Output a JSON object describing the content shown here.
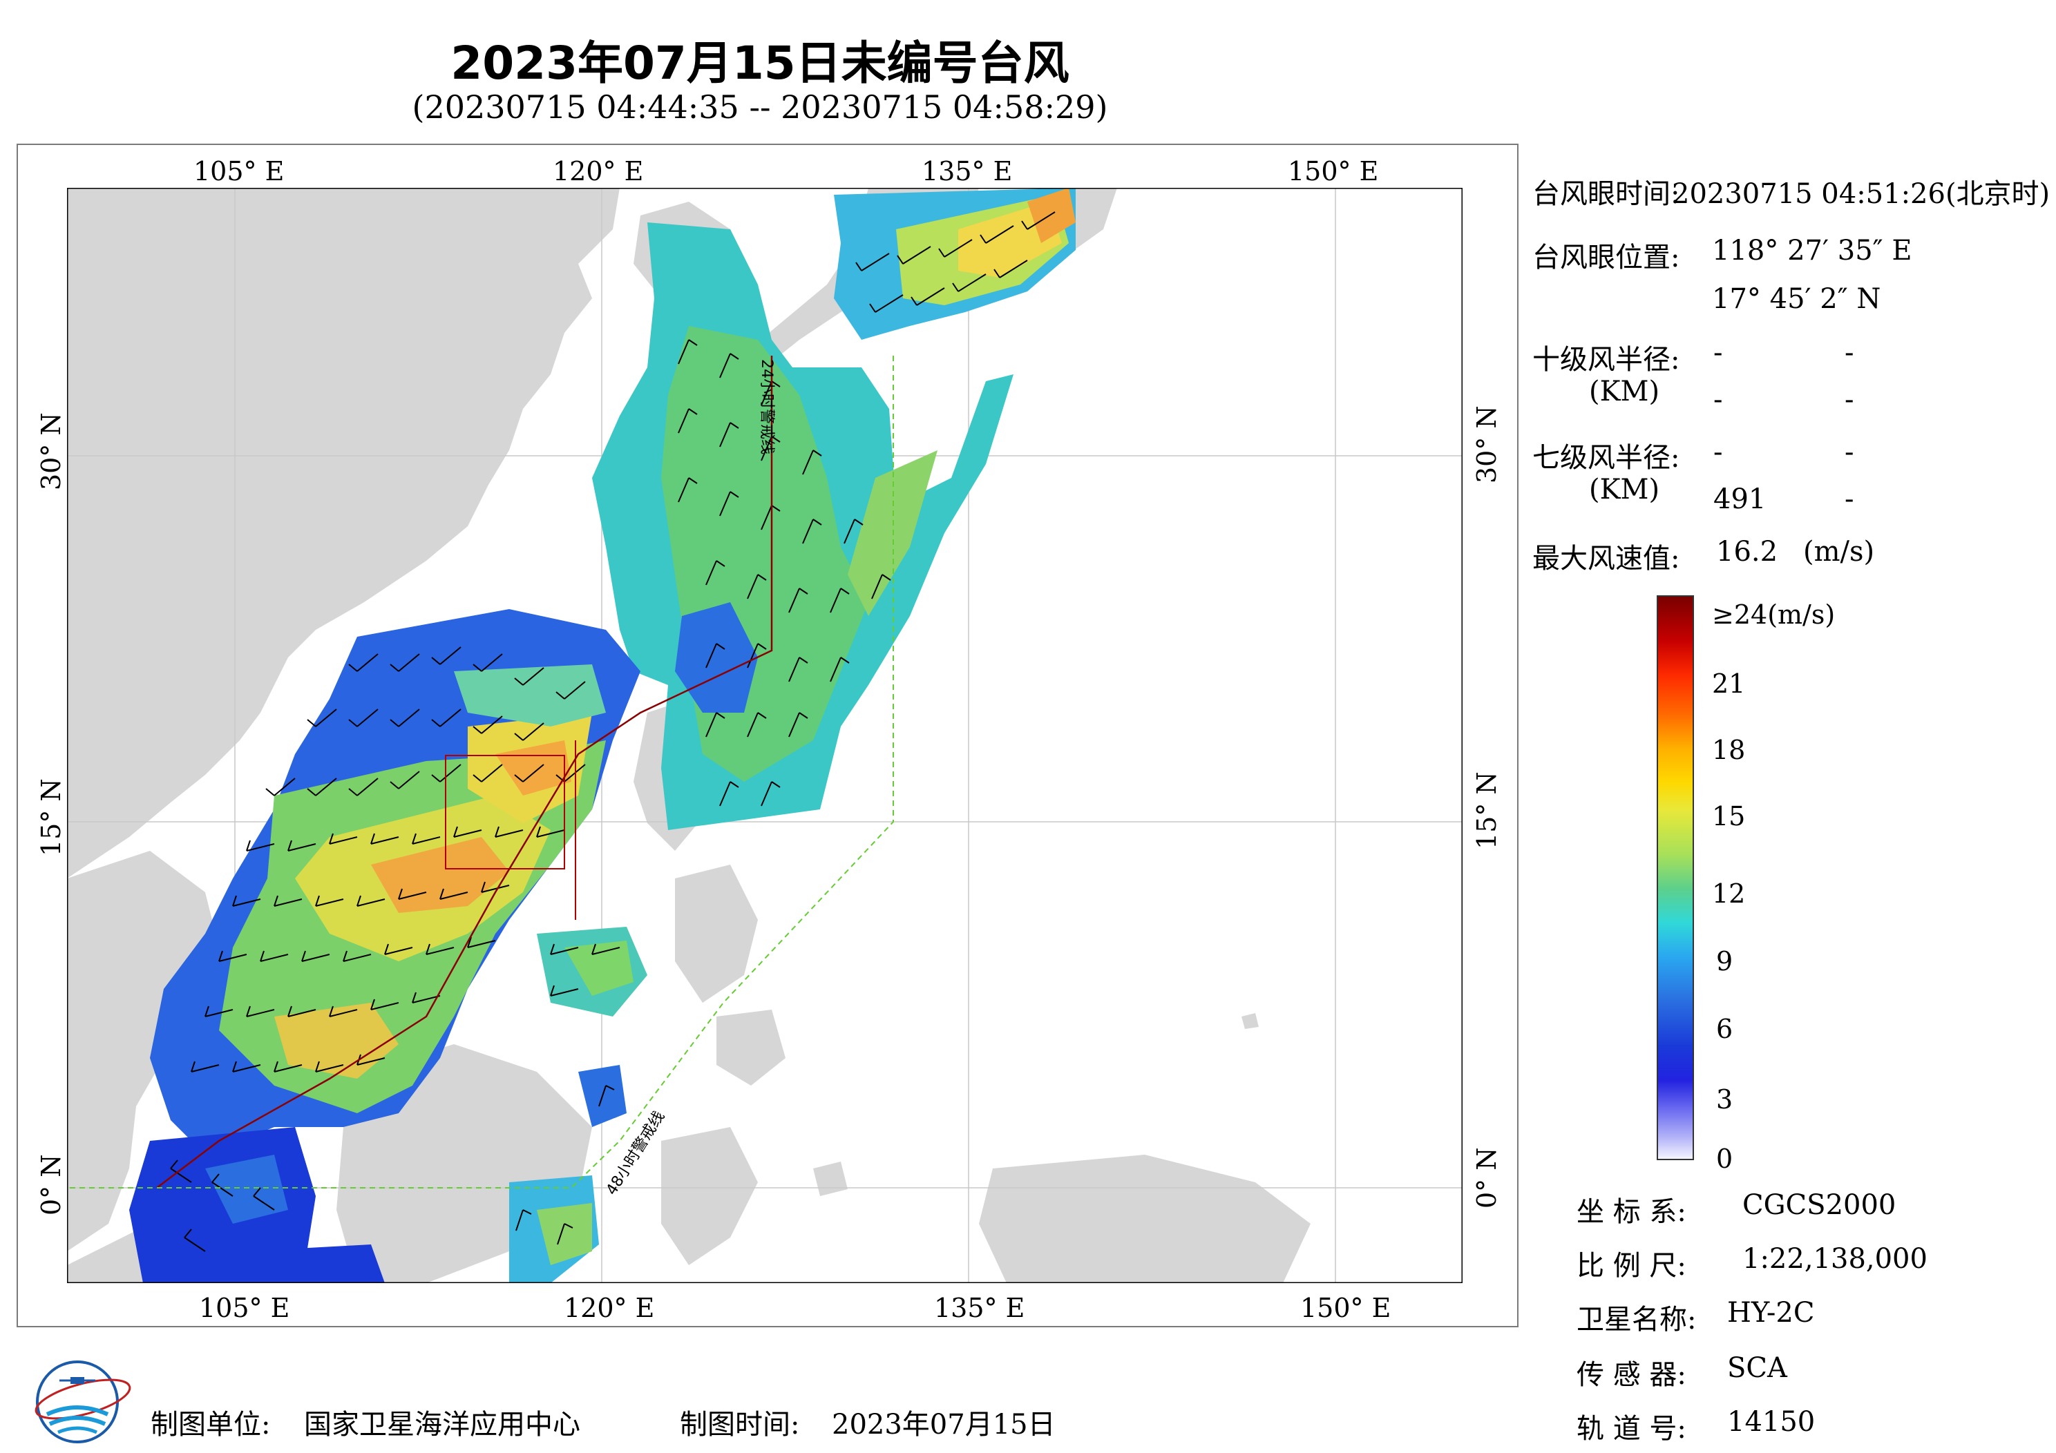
{
  "header": {
    "title": "2023年07月15日未编号台风",
    "subtitle": "(20230715 04:44:35 -- 20230715 04:58:29)"
  },
  "map": {
    "lon_ticks": [
      "105° E",
      "120° E",
      "135° E",
      "150° E"
    ],
    "lat_ticks": [
      "30° N",
      "15° N",
      "0° N"
    ],
    "warning_24h_label": "24小时警戒线",
    "warning_48h_label": "48小时警戒线",
    "colors": {
      "land": "#d6d6d6",
      "sea": "#ffffff",
      "warning24": "#8b0000",
      "warning48": "#66cc33"
    }
  },
  "info": {
    "eye_time_label": "台风眼时间:",
    "eye_time_value": "20230715 04:51:26(北京时)",
    "eye_pos_label": "台风眼位置:",
    "eye_lon": "118° 27′ 35″ E",
    "eye_lat": "17° 45′ 2″ N",
    "r10_label": "十级风半径:",
    "r10_unit": "(KM)",
    "r10_values": [
      "-",
      "-",
      "-",
      "-"
    ],
    "r7_label": "七级风半径:",
    "r7_unit": "(KM)",
    "r7_values": [
      "-",
      "-",
      "491",
      "-"
    ],
    "max_wind_label": "最大风速值:",
    "max_wind_value": "16.2",
    "max_wind_unit": "(m/s)"
  },
  "colorbar": {
    "top_label": "≥24(m/s)",
    "ticks": [
      "21",
      "18",
      "15",
      "12",
      "9",
      "6",
      "3",
      "0"
    ]
  },
  "meta": {
    "crs_label": "坐 标 系:",
    "crs_value": "CGCS2000",
    "scale_label": "比 例 尺:",
    "scale_value": "1:22,138,000",
    "satellite_label": "卫星名称:",
    "satellite_value": "HY-2C",
    "sensor_label": "传 感 器:",
    "sensor_value": "SCA",
    "orbit_label": "轨 道 号:",
    "orbit_value": "14150"
  },
  "footer": {
    "producer_label": "制图单位:",
    "producer_value": "国家卫星海洋应用中心",
    "date_label": "制图时间:",
    "date_value": "2023年07月15日"
  }
}
